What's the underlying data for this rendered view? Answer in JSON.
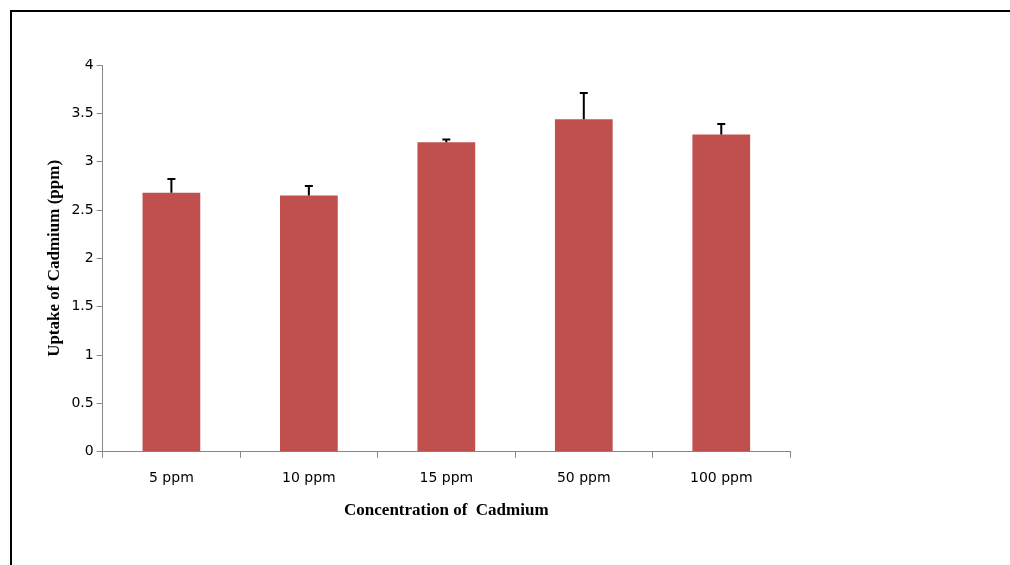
{
  "chart_data": {
    "type": "bar",
    "xlabel": "Concentration of  Cadmium",
    "ylabel": "Uptake of Cadmium (ppm)",
    "categories": [
      "5 ppm",
      "10 ppm",
      "15 ppm",
      "50 ppm",
      "100 ppm"
    ],
    "values": [
      2.68,
      2.65,
      3.2,
      3.44,
      3.28
    ],
    "errors": [
      [
        2.68,
        2.82
      ],
      [
        2.65,
        2.75
      ],
      [
        3.2,
        3.23
      ],
      [
        3.44,
        3.71
      ],
      [
        3.28,
        3.39
      ]
    ],
    "color": "#c0504d",
    "ylim": [
      0,
      4
    ],
    "yticks": [
      0,
      0.5,
      1,
      1.5,
      2,
      2.5,
      3,
      3.5,
      4
    ],
    "legend": false
  }
}
